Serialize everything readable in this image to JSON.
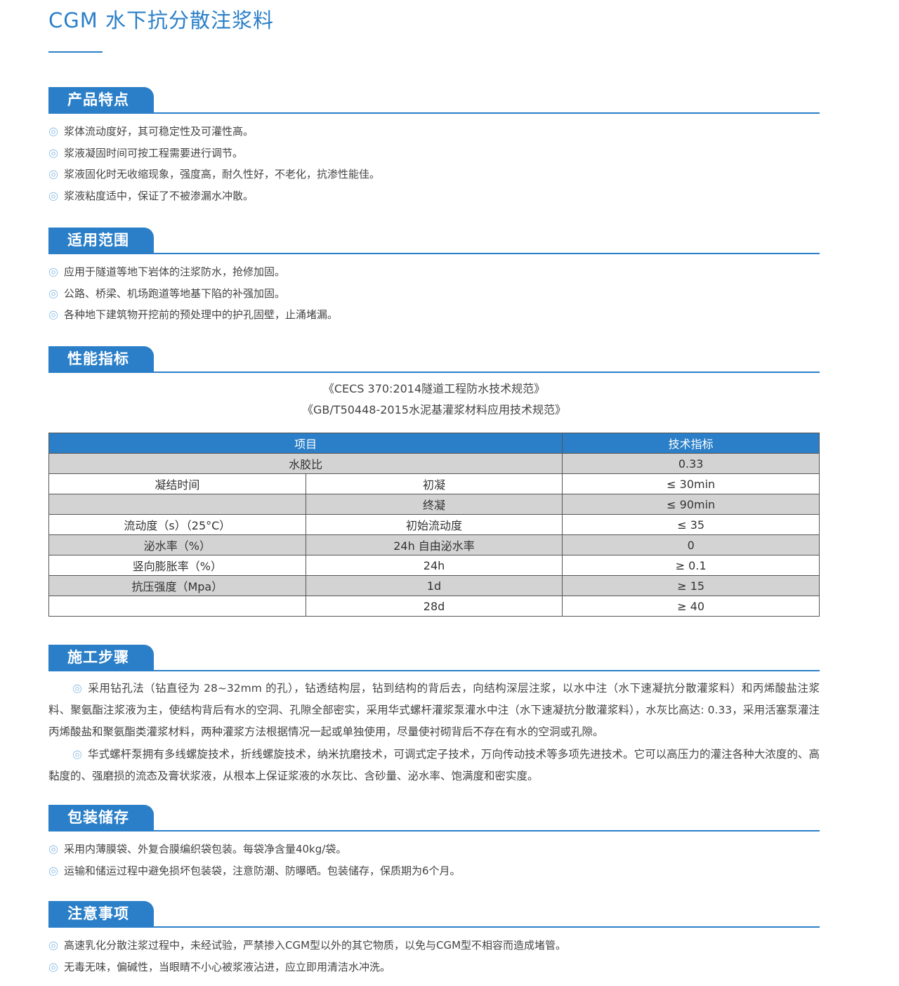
{
  "title": "CGM 水下抗分散注浆料",
  "bullet_icon": "double-circle",
  "accent": "#2a7fc8",
  "features": {
    "heading": "产品特点",
    "items": [
      "浆体流动度好，其可稳定性及可灌性高。",
      "浆液凝固时间可按工程需要进行调节。",
      "浆液固化时无收缩现象，强度高，耐久性好，不老化，抗渗性能佳。",
      "浆液粘度适中，保证了不被渗漏水冲散。"
    ]
  },
  "scope": {
    "heading": "适用范围",
    "items": [
      "应用于隧道等地下岩体的注浆防水，抢修加固。",
      "公路、桥梁、机场跑道等地基下陷的补强加固。",
      "各种地下建筑物开挖前的预处理中的护孔固壁，止涌堵漏。"
    ]
  },
  "performance": {
    "heading": "性能指标",
    "standards": [
      "《CECS 370:2014隧道工程防水技术规范》",
      "《GB/T50448-2015水泥基灌浆材料应用技术规范》"
    ],
    "table": {
      "headers": [
        "项目",
        "技术指标"
      ],
      "rows": [
        [
          "水胶比",
          "",
          "0.33"
        ],
        [
          "凝结时间",
          "初凝",
          "≤ 30min"
        ],
        [
          "",
          "终凝",
          "≤ 90min"
        ],
        [
          "流动度（s）（25°C）",
          "初始流动度",
          "≤ 35"
        ],
        [
          "泌水率（%）",
          "24h 自由泌水率",
          "0"
        ],
        [
          "竖向膨胀率（%）",
          "24h",
          "≥ 0.1"
        ],
        [
          "抗压强度（Mpa）",
          "1d",
          "≥ 15"
        ],
        [
          "",
          "28d",
          "≥ 40"
        ]
      ]
    }
  },
  "construction": {
    "heading": "施工步骤",
    "paragraphs": [
      "采用钻孔法（钻直径为 28~32mm 的孔），钻透结构层，钻到结构的背后去，向结构深层注浆，以水中注（水下速凝抗分散灌浆料）和丙烯酸盐注浆料、聚氨酯注浆液为主，使结构背后有水的空洞、孔隙全部密实，采用华式螺杆灌浆泵灌水中注（水下速凝抗分散灌浆料），水灰比高达: 0.33，采用活塞泵灌注丙烯酸盐和聚氨酯类灌浆材料，两种灌浆方法根据情况一起或单独使用，尽量使衬砌背后不存在有水的空洞或孔隙。",
      "华式螺杆泵拥有多线螺旋技术，折线螺旋技术，纳米抗磨技术，可调式定子技术，万向传动技术等多项先进技术。它可以高压力的灌注各种大浓度的、高黏度的、强磨损的流态及膏状浆液，从根本上保证浆液的水灰比、含砂量、泌水率、饱满度和密实度。"
    ]
  },
  "packaging": {
    "heading": "包装储存",
    "items": [
      "采用内薄膜袋、外复合膜编织袋包装。每袋净含量40kg/袋。",
      "运输和储运过程中避免损坏包装袋，注意防潮、防曝晒。包装储存，保质期为6个月。"
    ]
  },
  "notes": {
    "heading": "注意事项",
    "items": [
      "高速乳化分散注浆过程中，未经试验，严禁掺入CGM型以外的其它物质，以免与CGM型不相容而造成堵管。",
      "无毒无味，偏碱性，当眼睛不小心被浆液沾进，应立即用清洁水冲洗。"
    ]
  }
}
